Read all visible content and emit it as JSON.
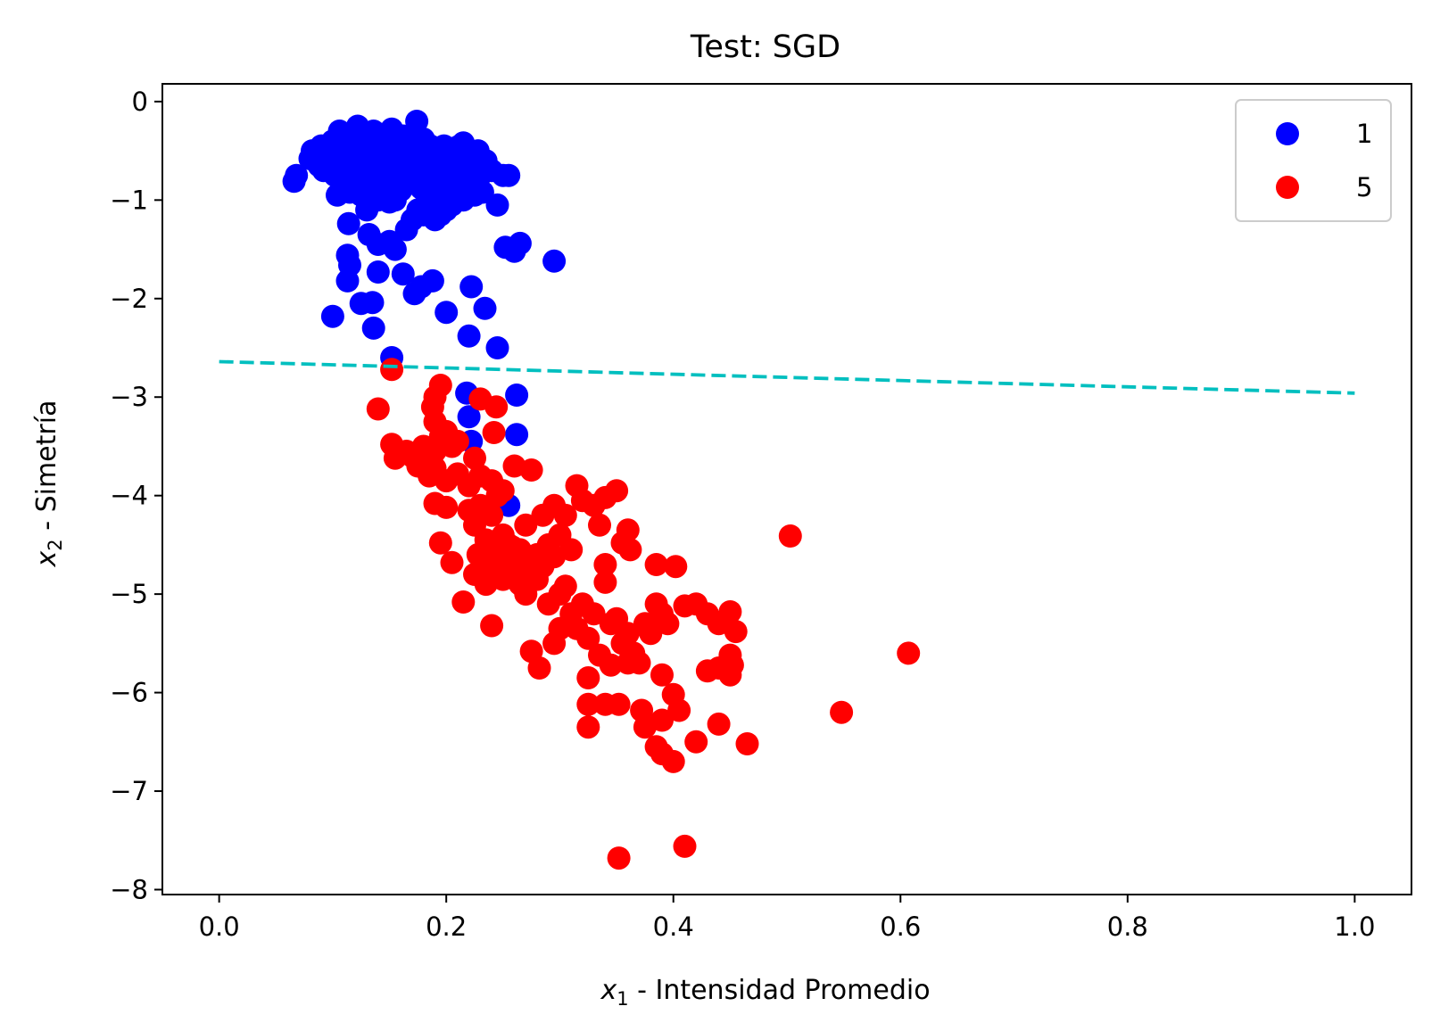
{
  "chart_data": {
    "type": "scatter",
    "title": "Test: SGD",
    "xlabel": {
      "var": "x",
      "sub": "1",
      "text": " - Intensidad Promedio"
    },
    "ylabel": {
      "var": "x",
      "sub": "2",
      "text": " - Simetría"
    },
    "xlim": [
      -0.05,
      1.05
    ],
    "ylim": [
      -8.05,
      0.18
    ],
    "xticks": [
      {
        "value": 0.0,
        "label": "0.0"
      },
      {
        "value": 0.2,
        "label": "0.2"
      },
      {
        "value": 0.4,
        "label": "0.4"
      },
      {
        "value": 0.6,
        "label": "0.6"
      },
      {
        "value": 0.8,
        "label": "0.8"
      },
      {
        "value": 1.0,
        "label": "1.0"
      }
    ],
    "yticks": [
      {
        "value": 0,
        "label": "0"
      },
      {
        "value": -1,
        "label": "−1"
      },
      {
        "value": -2,
        "label": "−2"
      },
      {
        "value": -3,
        "label": "−3"
      },
      {
        "value": -4,
        "label": "−4"
      },
      {
        "value": -5,
        "label": "−5"
      },
      {
        "value": -6,
        "label": "−6"
      },
      {
        "value": -7,
        "label": "−7"
      },
      {
        "value": -8,
        "label": "−8"
      }
    ],
    "grid": false,
    "legend_position": "top-right",
    "series": [
      {
        "name": "1",
        "color": "#0000ff",
        "points": [
          [
            0.066,
            -0.81
          ],
          [
            0.068,
            -0.75
          ],
          [
            0.08,
            -0.58
          ],
          [
            0.082,
            -0.5
          ],
          [
            0.088,
            -0.65
          ],
          [
            0.09,
            -0.45
          ],
          [
            0.092,
            -0.7
          ],
          [
            0.095,
            -0.6
          ],
          [
            0.098,
            -0.52
          ],
          [
            0.1,
            -0.4
          ],
          [
            0.102,
            -0.75
          ],
          [
            0.104,
            -0.95
          ],
          [
            0.106,
            -0.3
          ],
          [
            0.108,
            -0.55
          ],
          [
            0.11,
            -0.68
          ],
          [
            0.112,
            -0.88
          ],
          [
            0.114,
            -0.42
          ],
          [
            0.116,
            -0.6
          ],
          [
            0.118,
            -0.78
          ],
          [
            0.12,
            -0.35
          ],
          [
            0.122,
            -0.25
          ],
          [
            0.124,
            -0.5
          ],
          [
            0.126,
            -0.65
          ],
          [
            0.128,
            -0.85
          ],
          [
            0.13,
            -0.4
          ],
          [
            0.132,
            -0.55
          ],
          [
            0.134,
            -0.72
          ],
          [
            0.136,
            -0.3
          ],
          [
            0.138,
            -0.48
          ],
          [
            0.14,
            -0.62
          ],
          [
            0.142,
            -0.8
          ],
          [
            0.144,
            -0.95
          ],
          [
            0.146,
            -0.38
          ],
          [
            0.148,
            -0.52
          ],
          [
            0.15,
            -0.68
          ],
          [
            0.152,
            -0.28
          ],
          [
            0.154,
            -0.45
          ],
          [
            0.156,
            -0.6
          ],
          [
            0.158,
            -0.75
          ],
          [
            0.16,
            -0.9
          ],
          [
            0.162,
            -0.35
          ],
          [
            0.164,
            -0.5
          ],
          [
            0.166,
            -0.65
          ],
          [
            0.168,
            -0.82
          ],
          [
            0.17,
            -0.42
          ],
          [
            0.172,
            -0.58
          ],
          [
            0.174,
            -0.2
          ],
          [
            0.176,
            -0.72
          ],
          [
            0.178,
            -0.88
          ],
          [
            0.18,
            -0.5
          ],
          [
            0.182,
            -0.65
          ],
          [
            0.184,
            -0.8
          ],
          [
            0.186,
            -0.45
          ],
          [
            0.188,
            -0.6
          ],
          [
            0.19,
            -0.75
          ],
          [
            0.192,
            -0.9
          ],
          [
            0.194,
            -0.55
          ],
          [
            0.196,
            -0.7
          ],
          [
            0.198,
            -0.45
          ],
          [
            0.2,
            -0.62
          ],
          [
            0.202,
            -0.78
          ],
          [
            0.204,
            -0.95
          ],
          [
            0.206,
            -0.52
          ],
          [
            0.208,
            -0.68
          ],
          [
            0.21,
            -0.82
          ],
          [
            0.212,
            -0.6
          ],
          [
            0.215,
            -0.42
          ],
          [
            0.218,
            -0.7
          ],
          [
            0.22,
            -0.55
          ],
          [
            0.222,
            -0.85
          ],
          [
            0.225,
            -0.62
          ],
          [
            0.228,
            -0.5
          ],
          [
            0.23,
            -0.75
          ],
          [
            0.232,
            -0.92
          ],
          [
            0.235,
            -0.6
          ],
          [
            0.24,
            -0.7
          ],
          [
            0.245,
            -1.05
          ],
          [
            0.25,
            -0.75
          ],
          [
            0.1,
            -0.62
          ],
          [
            0.11,
            -0.48
          ],
          [
            0.12,
            -0.72
          ],
          [
            0.13,
            -0.58
          ],
          [
            0.14,
            -0.44
          ],
          [
            0.15,
            -0.82
          ],
          [
            0.16,
            -0.56
          ],
          [
            0.17,
            -0.66
          ],
          [
            0.18,
            -0.38
          ],
          [
            0.19,
            -0.52
          ],
          [
            0.2,
            -0.86
          ],
          [
            0.21,
            -0.46
          ],
          [
            0.115,
            -0.92
          ],
          [
            0.125,
            -0.95
          ],
          [
            0.13,
            -1.1
          ],
          [
            0.14,
            -1.0
          ],
          [
            0.15,
            -1.02
          ],
          [
            0.155,
            -1.0
          ],
          [
            0.165,
            -1.3
          ],
          [
            0.17,
            -1.2
          ],
          [
            0.175,
            -1.1
          ],
          [
            0.18,
            -1.15
          ],
          [
            0.185,
            -1.08
          ],
          [
            0.19,
            -1.2
          ],
          [
            0.195,
            -1.15
          ],
          [
            0.2,
            -1.1
          ],
          [
            0.205,
            -1.05
          ],
          [
            0.215,
            -1.0
          ],
          [
            0.225,
            -0.95
          ],
          [
            0.114,
            -1.24
          ],
          [
            0.132,
            -1.35
          ],
          [
            0.14,
            -1.45
          ],
          [
            0.15,
            -1.42
          ],
          [
            0.155,
            -1.5
          ],
          [
            0.113,
            -1.56
          ],
          [
            0.115,
            -1.66
          ],
          [
            0.113,
            -1.82
          ],
          [
            0.14,
            -1.73
          ],
          [
            0.162,
            -1.75
          ],
          [
            0.172,
            -1.95
          ],
          [
            0.178,
            -1.88
          ],
          [
            0.188,
            -1.82
          ],
          [
            0.222,
            -1.88
          ],
          [
            0.125,
            -2.05
          ],
          [
            0.135,
            -2.04
          ],
          [
            0.1,
            -2.18
          ],
          [
            0.2,
            -2.14
          ],
          [
            0.234,
            -2.1
          ],
          [
            0.136,
            -2.3
          ],
          [
            0.22,
            -2.38
          ],
          [
            0.245,
            -2.5
          ],
          [
            0.152,
            -2.6
          ],
          [
            0.252,
            -1.48
          ],
          [
            0.26,
            -1.52
          ],
          [
            0.265,
            -1.44
          ],
          [
            0.295,
            -1.62
          ],
          [
            0.255,
            -0.75
          ],
          [
            0.218,
            -2.96
          ],
          [
            0.262,
            -2.98
          ],
          [
            0.22,
            -3.2
          ],
          [
            0.222,
            -3.45
          ],
          [
            0.262,
            -3.38
          ],
          [
            0.255,
            -4.1
          ]
        ]
      },
      {
        "name": "5",
        "color": "#ff0000",
        "points": [
          [
            0.152,
            -2.72
          ],
          [
            0.14,
            -3.12
          ],
          [
            0.195,
            -2.88
          ],
          [
            0.19,
            -3.0
          ],
          [
            0.188,
            -3.1
          ],
          [
            0.19,
            -3.25
          ],
          [
            0.195,
            -3.4
          ],
          [
            0.2,
            -3.35
          ],
          [
            0.205,
            -3.5
          ],
          [
            0.21,
            -3.45
          ],
          [
            0.19,
            -3.55
          ],
          [
            0.18,
            -3.5
          ],
          [
            0.23,
            -3.02
          ],
          [
            0.244,
            -3.1
          ],
          [
            0.242,
            -3.36
          ],
          [
            0.152,
            -3.48
          ],
          [
            0.155,
            -3.62
          ],
          [
            0.165,
            -3.55
          ],
          [
            0.17,
            -3.6
          ],
          [
            0.175,
            -3.7
          ],
          [
            0.185,
            -3.8
          ],
          [
            0.19,
            -3.72
          ],
          [
            0.2,
            -3.85
          ],
          [
            0.21,
            -3.78
          ],
          [
            0.22,
            -3.9
          ],
          [
            0.225,
            -3.62
          ],
          [
            0.23,
            -3.8
          ],
          [
            0.24,
            -3.85
          ],
          [
            0.25,
            -3.95
          ],
          [
            0.26,
            -3.7
          ],
          [
            0.275,
            -3.74
          ],
          [
            0.19,
            -4.08
          ],
          [
            0.2,
            -4.12
          ],
          [
            0.22,
            -4.15
          ],
          [
            0.225,
            -4.3
          ],
          [
            0.23,
            -4.1
          ],
          [
            0.24,
            -4.2
          ],
          [
            0.245,
            -4.0
          ],
          [
            0.25,
            -4.4
          ],
          [
            0.255,
            -4.5
          ],
          [
            0.26,
            -4.6
          ],
          [
            0.265,
            -4.55
          ],
          [
            0.27,
            -4.7
          ],
          [
            0.275,
            -4.8
          ],
          [
            0.28,
            -4.6
          ],
          [
            0.285,
            -4.72
          ],
          [
            0.29,
            -4.5
          ],
          [
            0.295,
            -4.62
          ],
          [
            0.3,
            -4.4
          ],
          [
            0.305,
            -4.2
          ],
          [
            0.295,
            -4.1
          ],
          [
            0.285,
            -4.2
          ],
          [
            0.315,
            -3.9
          ],
          [
            0.32,
            -4.05
          ],
          [
            0.33,
            -4.1
          ],
          [
            0.34,
            -4.02
          ],
          [
            0.35,
            -3.95
          ],
          [
            0.335,
            -4.3
          ],
          [
            0.36,
            -4.35
          ],
          [
            0.355,
            -4.48
          ],
          [
            0.195,
            -4.48
          ],
          [
            0.205,
            -4.68
          ],
          [
            0.215,
            -5.08
          ],
          [
            0.225,
            -4.8
          ],
          [
            0.235,
            -4.9
          ],
          [
            0.24,
            -4.75
          ],
          [
            0.245,
            -4.6
          ],
          [
            0.25,
            -4.85
          ],
          [
            0.26,
            -4.7
          ],
          [
            0.265,
            -4.9
          ],
          [
            0.27,
            -5.0
          ],
          [
            0.28,
            -4.85
          ],
          [
            0.29,
            -5.1
          ],
          [
            0.3,
            -5.0
          ],
          [
            0.305,
            -4.92
          ],
          [
            0.31,
            -5.2
          ],
          [
            0.315,
            -5.35
          ],
          [
            0.32,
            -5.1
          ],
          [
            0.325,
            -5.45
          ],
          [
            0.33,
            -5.2
          ],
          [
            0.34,
            -4.88
          ],
          [
            0.34,
            -4.7
          ],
          [
            0.345,
            -5.3
          ],
          [
            0.35,
            -5.25
          ],
          [
            0.355,
            -5.5
          ],
          [
            0.36,
            -5.4
          ],
          [
            0.365,
            -5.6
          ],
          [
            0.37,
            -5.7
          ],
          [
            0.375,
            -5.3
          ],
          [
            0.38,
            -5.4
          ],
          [
            0.385,
            -5.1
          ],
          [
            0.39,
            -5.2
          ],
          [
            0.395,
            -5.3
          ],
          [
            0.385,
            -4.7
          ],
          [
            0.402,
            -4.72
          ],
          [
            0.24,
            -5.32
          ],
          [
            0.275,
            -5.58
          ],
          [
            0.282,
            -5.75
          ],
          [
            0.295,
            -5.5
          ],
          [
            0.3,
            -5.35
          ],
          [
            0.325,
            -5.85
          ],
          [
            0.335,
            -5.62
          ],
          [
            0.345,
            -5.72
          ],
          [
            0.36,
            -5.7
          ],
          [
            0.39,
            -5.82
          ],
          [
            0.4,
            -6.02
          ],
          [
            0.405,
            -6.18
          ],
          [
            0.41,
            -5.12
          ],
          [
            0.42,
            -5.1
          ],
          [
            0.43,
            -5.2
          ],
          [
            0.44,
            -5.3
          ],
          [
            0.45,
            -5.18
          ],
          [
            0.455,
            -5.38
          ],
          [
            0.45,
            -5.62
          ],
          [
            0.452,
            -5.72
          ],
          [
            0.45,
            -5.82
          ],
          [
            0.44,
            -5.75
          ],
          [
            0.43,
            -5.78
          ],
          [
            0.325,
            -6.12
          ],
          [
            0.325,
            -6.35
          ],
          [
            0.34,
            -6.12
          ],
          [
            0.352,
            -6.12
          ],
          [
            0.372,
            -6.18
          ],
          [
            0.375,
            -6.35
          ],
          [
            0.39,
            -6.28
          ],
          [
            0.385,
            -6.55
          ],
          [
            0.39,
            -6.62
          ],
          [
            0.4,
            -6.7
          ],
          [
            0.42,
            -6.5
          ],
          [
            0.44,
            -6.32
          ],
          [
            0.465,
            -6.52
          ],
          [
            0.503,
            -4.41
          ],
          [
            0.548,
            -6.2
          ],
          [
            0.607,
            -5.6
          ],
          [
            0.352,
            -7.68
          ],
          [
            0.41,
            -7.56
          ],
          [
            0.362,
            -4.55
          ],
          [
            0.31,
            -4.55
          ],
          [
            0.27,
            -4.3
          ],
          [
            0.235,
            -4.45
          ],
          [
            0.228,
            -4.6
          ],
          [
            0.247,
            -4.7
          ],
          [
            0.258,
            -4.52
          ],
          [
            0.268,
            -4.62
          ]
        ]
      }
    ],
    "boundary": {
      "color": "#00bfbf",
      "x": [
        0.0,
        1.0
      ],
      "y": [
        -2.64,
        -2.96
      ],
      "style": "dashed"
    }
  }
}
